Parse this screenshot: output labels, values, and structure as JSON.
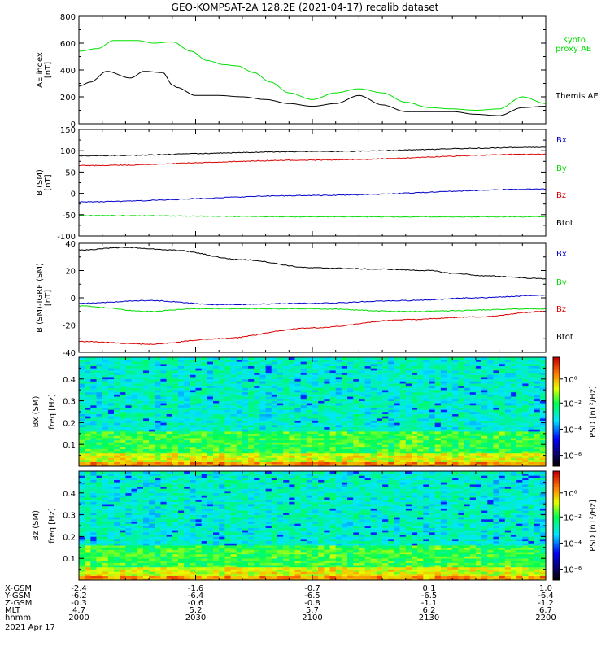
{
  "title": "GEO-KOMPSAT-2A 128.2E (2021-04-17) recalib dataset",
  "chart_data": [
    {
      "type": "line",
      "panel": "ae",
      "ylabel": [
        "AE index",
        "[nT]"
      ],
      "ylim": [
        0,
        800
      ],
      "yticks": [
        0,
        200,
        400,
        600,
        800
      ],
      "x_range": [
        "2000",
        "2200"
      ],
      "series": [
        {
          "name": "Kyoto proxy AE",
          "legend": [
            "Kyoto",
            "proxy AE"
          ],
          "color": "#00e000",
          "x": [
            0,
            8,
            15,
            25,
            32,
            40,
            48,
            55,
            62,
            68,
            75,
            82,
            90,
            100,
            110,
            120,
            130,
            140,
            150,
            160,
            170,
            180,
            190,
            200
          ],
          "y": [
            540,
            560,
            620,
            620,
            600,
            610,
            540,
            470,
            440,
            430,
            380,
            310,
            230,
            180,
            230,
            260,
            230,
            160,
            120,
            110,
            100,
            110,
            200,
            150
          ]
        },
        {
          "name": "Themis AE",
          "legend": [
            "Themis AE"
          ],
          "color": "#000000",
          "x": [
            0,
            5,
            12,
            22,
            28,
            36,
            40,
            42,
            50,
            60,
            70,
            80,
            90,
            100,
            110,
            120,
            130,
            140,
            150,
            160,
            170,
            180,
            190,
            200
          ],
          "y": [
            280,
            310,
            390,
            340,
            390,
            380,
            290,
            270,
            210,
            210,
            200,
            180,
            150,
            130,
            150,
            210,
            140,
            90,
            90,
            90,
            70,
            60,
            120,
            130
          ]
        }
      ]
    },
    {
      "type": "line",
      "panel": "b_sm",
      "ylabel": [
        "B (SM)",
        "[nT]"
      ],
      "ylim": [
        -100,
        150
      ],
      "yticks": [
        -100,
        -50,
        0,
        50,
        100,
        150
      ],
      "x_range": [
        "2000",
        "2200"
      ],
      "series": [
        {
          "name": "Bx",
          "color": "#0000cc",
          "x": [
            0,
            100,
            200
          ],
          "y": [
            -20,
            -5,
            10
          ]
        },
        {
          "name": "By",
          "color": "#00dd00",
          "x": [
            0,
            100,
            200
          ],
          "y": [
            -52,
            -55,
            -55
          ]
        },
        {
          "name": "Bz",
          "color": "#dd0000",
          "x": [
            0,
            100,
            200
          ],
          "y": [
            65,
            78,
            92
          ]
        },
        {
          "name": "Btot",
          "color": "#000000",
          "x": [
            0,
            100,
            200
          ],
          "y": [
            88,
            98,
            108
          ]
        }
      ]
    },
    {
      "type": "line",
      "panel": "b_sm_igrf",
      "ylabel": [
        "B (SM)-IGRF (SM)",
        "[nT]"
      ],
      "ylim": [
        -40,
        40
      ],
      "yticks": [
        -40,
        -20,
        0,
        20,
        40
      ],
      "x_range": [
        "2000",
        "2200"
      ],
      "series": [
        {
          "name": "Bx",
          "color": "#0000cc",
          "x": [
            0,
            30,
            60,
            100,
            140,
            170,
            200
          ],
          "y": [
            -4,
            -2,
            -5,
            -4,
            -2,
            0,
            2
          ]
        },
        {
          "name": "By",
          "color": "#00dd00",
          "x": [
            0,
            30,
            50,
            100,
            140,
            200
          ],
          "y": [
            -6,
            -10,
            -8,
            -8,
            -10,
            -8
          ]
        },
        {
          "name": "Bz",
          "color": "#dd0000",
          "x": [
            0,
            30,
            60,
            100,
            140,
            170,
            200
          ],
          "y": [
            -32,
            -34,
            -30,
            -22,
            -16,
            -14,
            -10
          ]
        },
        {
          "name": "Btot",
          "color": "#000000",
          "x": [
            0,
            20,
            40,
            70,
            100,
            130,
            150,
            160,
            175,
            200
          ],
          "y": [
            35,
            37,
            35,
            28,
            22,
            21,
            20,
            18,
            16,
            14
          ]
        }
      ]
    },
    {
      "type": "heatmap",
      "panel": "bx_spec",
      "ylabel": [
        "Bx (SM)",
        "freq [Hz]"
      ],
      "ylim": [
        0,
        0.5
      ],
      "yticks": [
        0.1,
        0.2,
        0.3,
        0.4
      ],
      "colorbar": {
        "label": "PSD [nT²/Hz]",
        "ticks": [
          "10⁰",
          "10⁻²",
          "10⁻⁴",
          "10⁻⁶"
        ]
      }
    },
    {
      "type": "heatmap",
      "panel": "bz_spec",
      "ylabel": [
        "Bz (SM)",
        "freq [Hz]"
      ],
      "ylim": [
        0,
        0.5
      ],
      "yticks": [
        0.1,
        0.2,
        0.3,
        0.4
      ],
      "colorbar": {
        "label": "PSD [nT²/Hz]",
        "ticks": [
          "10⁰",
          "10⁻²",
          "10⁻⁴",
          "10⁻⁶"
        ]
      }
    }
  ],
  "ephemeris": {
    "row_labels": [
      "X-GSM",
      "Y-GSM",
      "Z-GSM",
      "MLT",
      "hhmm"
    ],
    "date": "2021 Apr 17",
    "columns": [
      {
        "values": [
          "-2.4",
          "-6.2",
          "-0.3",
          "4.7",
          "2000"
        ]
      },
      {
        "values": [
          "-1.6",
          "-6.4",
          "-0.6",
          "5.2",
          "2030"
        ]
      },
      {
        "values": [
          "-0.7",
          "-6.5",
          "-0.8",
          "5.7",
          "2100"
        ]
      },
      {
        "values": [
          "0.1",
          "-6.5",
          "-1.1",
          "6.2",
          "2130"
        ]
      },
      {
        "values": [
          "1.0",
          "-6.4",
          "-1.2",
          "6.7",
          "2200"
        ]
      }
    ]
  }
}
